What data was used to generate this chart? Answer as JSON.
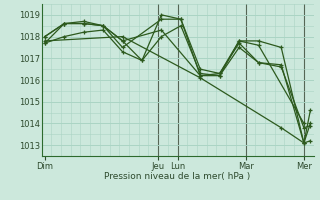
{
  "bg_color": "#cce8dc",
  "grid_color_major": "#b0d8c8",
  "grid_color_minor": "#b8dcd0",
  "line_color": "#2d5a1e",
  "marker_color": "#2d5a1e",
  "ylabel_text": "Pression niveau de la mer( hPa )",
  "ylim": [
    1012.5,
    1019.5
  ],
  "yticks": [
    1013,
    1014,
    1015,
    1016,
    1017,
    1018,
    1019
  ],
  "xlim": [
    0,
    168
  ],
  "day_labels": [
    "Dim",
    "Jeu",
    "Lun",
    "Mar",
    "Mer"
  ],
  "day_positions": [
    2,
    72,
    84,
    126,
    162
  ],
  "vline_positions": [
    72,
    84,
    126,
    162
  ],
  "lines": [
    {
      "x": [
        2,
        14,
        26,
        38,
        50,
        74,
        98,
        110,
        122,
        134,
        162
      ],
      "y": [
        1017.7,
        1018.6,
        1018.6,
        1018.5,
        1017.8,
        1018.3,
        1016.2,
        1016.2,
        1017.8,
        1017.6,
        1014.0
      ]
    },
    {
      "x": [
        2,
        14,
        26,
        38,
        50,
        74,
        86,
        98,
        110,
        122,
        134,
        148,
        162,
        166
      ],
      "y": [
        1018.0,
        1018.6,
        1018.6,
        1018.5,
        1017.5,
        1018.8,
        1018.8,
        1016.2,
        1016.3,
        1017.8,
        1017.8,
        1017.5,
        1013.1,
        1014.6
      ]
    },
    {
      "x": [
        2,
        14,
        26,
        38,
        50,
        62,
        74,
        86,
        98,
        110,
        122,
        134,
        148,
        162,
        166
      ],
      "y": [
        1018.0,
        1018.6,
        1018.7,
        1018.5,
        1017.8,
        1016.9,
        1019.0,
        1018.8,
        1016.5,
        1016.3,
        1017.7,
        1016.8,
        1016.7,
        1013.1,
        1014.0
      ]
    },
    {
      "x": [
        2,
        14,
        26,
        38,
        50,
        62,
        74,
        86,
        98,
        110,
        122,
        134,
        148,
        162,
        166
      ],
      "y": [
        1017.7,
        1018.0,
        1018.2,
        1018.3,
        1017.3,
        1016.9,
        1018.0,
        1018.5,
        1016.3,
        1016.2,
        1017.5,
        1016.8,
        1016.6,
        1013.8,
        1013.9
      ]
    },
    {
      "x": [
        2,
        50,
        98,
        148,
        162,
        166
      ],
      "y": [
        1017.8,
        1018.0,
        1016.1,
        1013.8,
        1013.1,
        1013.2
      ]
    }
  ]
}
